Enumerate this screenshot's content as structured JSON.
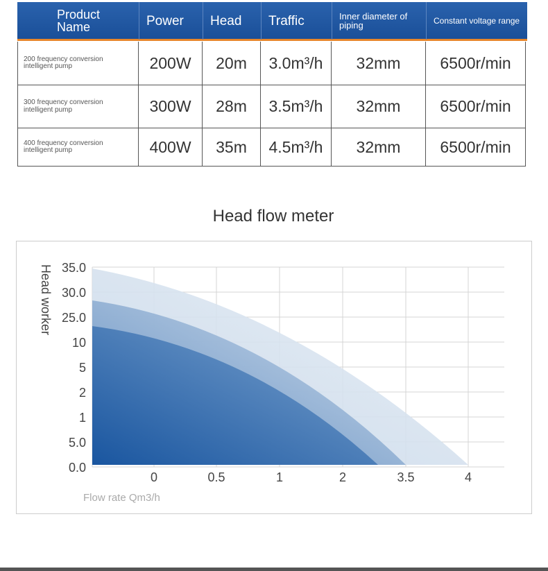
{
  "table": {
    "header": [
      "Product Name",
      "Power",
      "Head",
      "Traffic",
      "Inner diameter of piping",
      "Constant voltage range"
    ],
    "rows": [
      [
        "200 frequency conversion intelligent pump",
        "200W",
        "20m",
        "3.0m³/h",
        "32mm",
        "6500r/min"
      ],
      [
        "300 frequency conversion intelligent pump",
        "300W",
        "28m",
        "3.5m³/h",
        "32mm",
        "6500r/min"
      ],
      [
        "400 frequency conversion intelligent pump",
        "400W",
        "35m",
        "4.5m³/h",
        "32mm",
        "6500r/min"
      ]
    ]
  },
  "figure": {
    "title": "Head flow meter",
    "y_title": "Head worker",
    "x_title": "Flow rate Qm3/h",
    "y_labels": [
      "35.0",
      "30.0",
      "25.0",
      "10",
      "5",
      "2",
      "1",
      "5.0",
      "0.0"
    ],
    "x_labels": [
      "0",
      "0.5",
      "1",
      "2",
      "3.5",
      "4"
    ]
  }
}
